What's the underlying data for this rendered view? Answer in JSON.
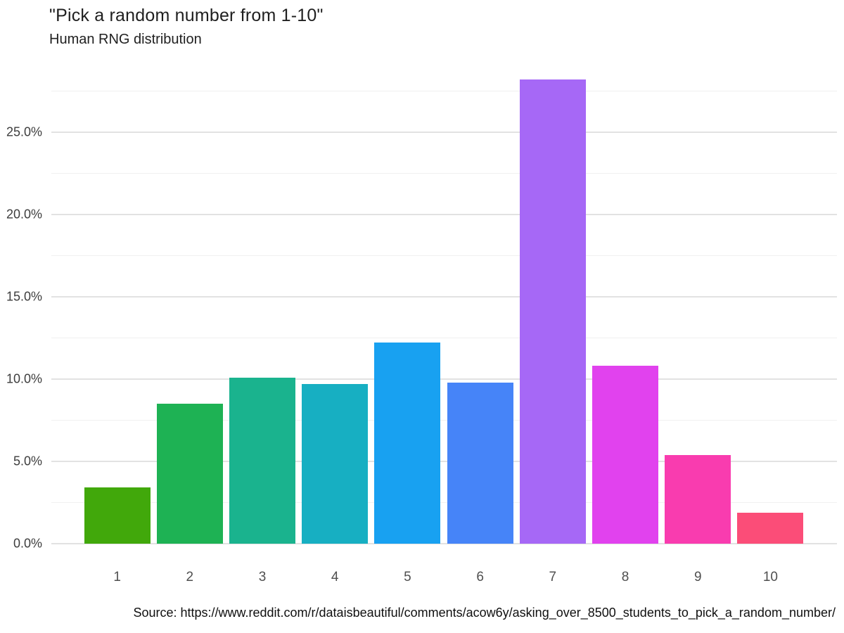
{
  "header": {
    "title": "\"Pick a random number from 1-10\"",
    "subtitle": "Human RNG distribution"
  },
  "footer": {
    "source": "Source: https://www.reddit.com/r/dataisbeautiful/comments/acow6y/asking_over_8500_students_to_pick_a_random_number/"
  },
  "chart_data": {
    "type": "bar",
    "title": "\"Pick a random number from 1-10\"",
    "subtitle": "Human RNG distribution",
    "categories": [
      "1",
      "2",
      "3",
      "4",
      "5",
      "6",
      "7",
      "8",
      "9",
      "10"
    ],
    "values": [
      3.4,
      8.5,
      10.1,
      9.7,
      12.2,
      9.8,
      28.2,
      10.8,
      5.4,
      1.9
    ],
    "unit": "percent",
    "bar_colors": [
      "#41a80b",
      "#1eb254",
      "#1ab38e",
      "#17afc2",
      "#18a1f1",
      "#4684f8",
      "#a668f6",
      "#e142ee",
      "#f93caf",
      "#fb4d78"
    ],
    "ylim": [
      0,
      28.2
    ],
    "y_major_ticks": [
      0,
      5,
      10,
      15,
      20,
      25
    ],
    "y_tick_labels": [
      "0.0%",
      "5.0%",
      "10.0%",
      "15.0%",
      "20.0%",
      "25.0%"
    ],
    "y_minor_ticks": [
      2.5,
      7.5,
      12.5,
      17.5,
      22.5,
      27.5
    ],
    "xlabel": "",
    "ylabel": "",
    "grid": "horizontal",
    "legend": "none",
    "source": "Source: https://www.reddit.com/r/dataisbeautiful/comments/acow6y/asking_over_8500_students_to_pick_a_random_number/"
  },
  "colors": {
    "background": "#ffffff",
    "major_grid": "#e2e2e2",
    "minor_grid": "#f0f0f0",
    "title_text": "#1f1f1f",
    "axis_tick_text": "#3d3d3d",
    "source_text": "#101010"
  }
}
